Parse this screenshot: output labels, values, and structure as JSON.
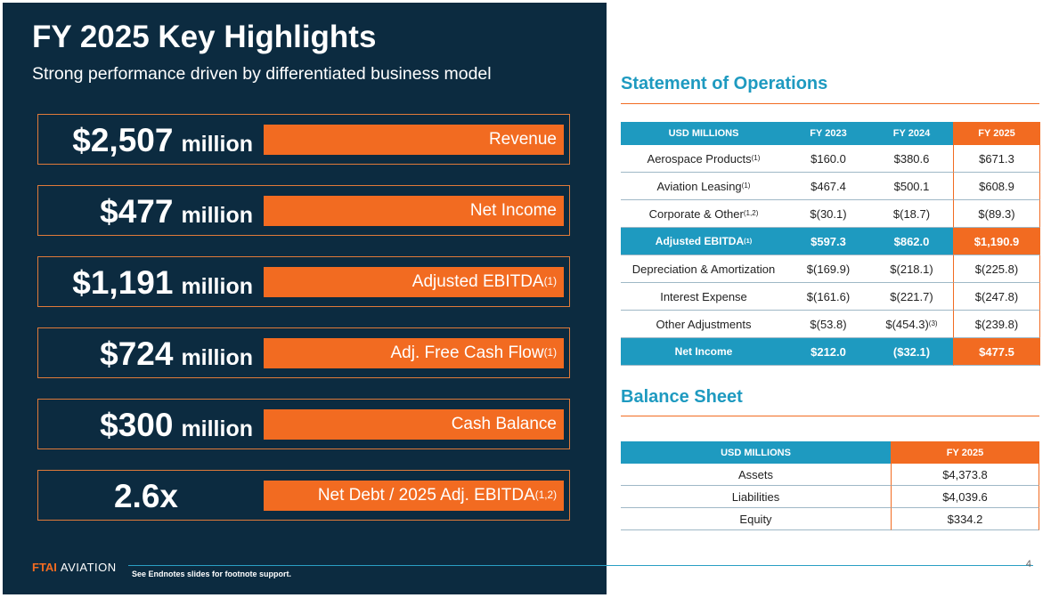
{
  "header": {
    "title": "FY 2025 Key Highlights",
    "subtitle": "Strong performance driven by differentiated business model"
  },
  "highlights": [
    {
      "value": "$2,507",
      "unit": "million",
      "label": "Revenue"
    },
    {
      "value": "$477",
      "unit": "million",
      "label": "Net Income"
    },
    {
      "value": "$1,191",
      "unit": "million",
      "label": "Adjusted EBITDA",
      "note": "(1)"
    },
    {
      "value": "$724",
      "unit": "million",
      "label": "Adj. Free Cash Flow",
      "note": "(1)"
    },
    {
      "value": "$300",
      "unit": "million",
      "label": "Cash Balance"
    },
    {
      "value": "2.6x",
      "label": "Net Debt / 2025 Adj. EBITDA",
      "note": "(1,2)"
    }
  ],
  "operations": {
    "title": "Statement of Operations",
    "headers": [
      "USD MILLIONS",
      "FY 2023",
      "FY 2024",
      "FY 2025"
    ],
    "rows": [
      {
        "label": "Aerospace Products",
        "note": "(1)",
        "cells": [
          "$160.0",
          "$380.6",
          "$671.3"
        ]
      },
      {
        "label": "Aviation Leasing",
        "note": "(1)",
        "cells": [
          "$467.4",
          "$500.1",
          "$608.9"
        ]
      },
      {
        "label": "Corporate & Other",
        "note": "(1,2)",
        "cells": [
          "$(30.1)",
          "$(18.7)",
          "$(89.3)"
        ]
      },
      {
        "label": "Adjusted EBITDA",
        "note": "(1)",
        "total": true,
        "cells": [
          "$597.3",
          "$862.0",
          "$1,190.9"
        ]
      },
      {
        "label": "Depreciation & Amortization",
        "cells": [
          "$(169.9)",
          "$(218.1)",
          "$(225.8)"
        ]
      },
      {
        "label": "Interest Expense",
        "cells": [
          "$(161.6)",
          "$(221.7)",
          "$(247.8)"
        ]
      },
      {
        "label": "Other Adjustments",
        "cells": [
          "$(53.8)",
          {
            "text": "$(454.3)",
            "note": "(3)"
          },
          "$(239.8)"
        ]
      },
      {
        "label": "Net Income",
        "total": true,
        "cells": [
          "$212.0",
          "($32.1)",
          "$477.5"
        ]
      }
    ]
  },
  "balance": {
    "title": "Balance Sheet",
    "headers": [
      "USD MILLIONS",
      "FY 2025"
    ],
    "rows": [
      [
        "Assets",
        "$4,373.8"
      ],
      [
        "Liabilities",
        "$4,039.6"
      ],
      [
        "Equity",
        "$334.2"
      ]
    ]
  },
  "footer": {
    "logo_mark": "FTAI",
    "logo_name": "AVIATION",
    "note": "See Endnotes slides for footnote support.",
    "page": "4"
  }
}
